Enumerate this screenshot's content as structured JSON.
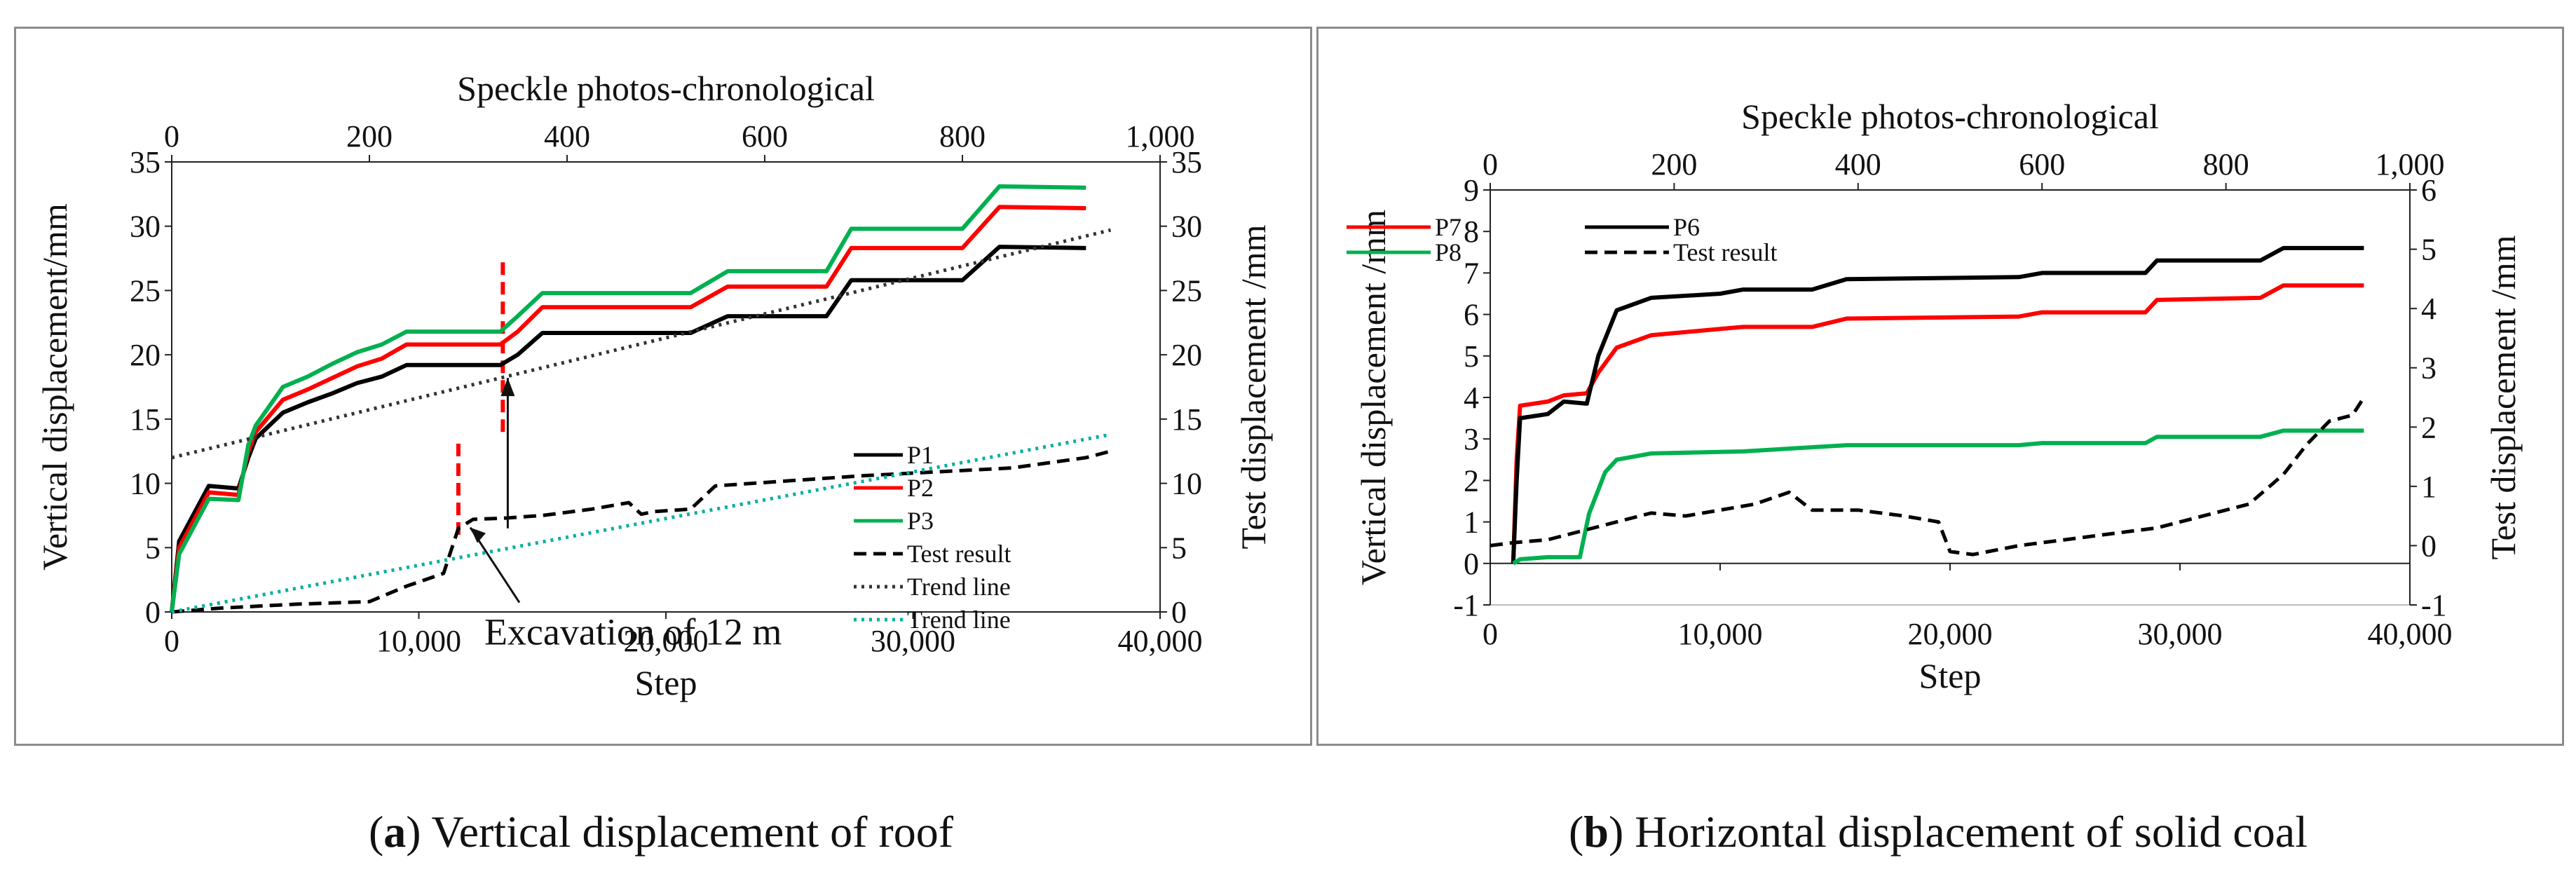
{
  "chart_data": [
    {
      "type": "line",
      "panel": "a",
      "xlabel": "Step",
      "x2label": "Speckle photos-chronological",
      "ylabel": "Vertical displacement/mm",
      "y2label": "Test displacement /mm",
      "xlim": [
        0,
        40000
      ],
      "x2lim": [
        0,
        1000
      ],
      "ylim": [
        0,
        35
      ],
      "y2lim": [
        0,
        35
      ],
      "xticks": [
        "0",
        "10,000",
        "20,000",
        "30,000",
        "40,000"
      ],
      "x2ticks": [
        "0",
        "200",
        "400",
        "600",
        "800",
        "1,000"
      ],
      "yticks": [
        "0",
        "5",
        "10",
        "15",
        "20",
        "25",
        "30",
        "35"
      ],
      "y2ticks": [
        "0",
        "5",
        "10",
        "15",
        "20",
        "25",
        "30",
        "35"
      ],
      "grid": false,
      "legend": "right",
      "series": [
        {
          "name": "P1",
          "axis": "left",
          "color": "#000000",
          "style": "solid",
          "x": [
            0,
            300,
            1500,
            2700,
            3100,
            3400,
            4500,
            5500,
            6500,
            7500,
            8500,
            9500,
            10500,
            13300,
            14000,
            15000,
            21000,
            22500,
            26500,
            27500,
            32000,
            33500,
            37000
          ],
          "y": [
            0,
            5.5,
            9.8,
            9.6,
            12,
            13.5,
            15.5,
            16.3,
            17,
            17.8,
            18.3,
            19.2,
            19.2,
            19.2,
            20,
            21.7,
            21.7,
            23,
            23,
            25.8,
            25.8,
            28.4,
            28.3
          ]
        },
        {
          "name": "P2",
          "axis": "left",
          "color": "#ff0000",
          "style": "solid",
          "x": [
            0,
            300,
            1500,
            2700,
            3100,
            3400,
            4500,
            5500,
            6500,
            7500,
            8500,
            9500,
            10500,
            13300,
            14000,
            15000,
            21000,
            22500,
            26500,
            27500,
            32000,
            33500,
            37000
          ],
          "y": [
            0,
            5,
            9.3,
            9.1,
            12.5,
            14,
            16.5,
            17.3,
            18.2,
            19.1,
            19.7,
            20.8,
            20.8,
            20.8,
            21.8,
            23.7,
            23.7,
            25.3,
            25.3,
            28.3,
            28.3,
            31.5,
            31.4
          ]
        },
        {
          "name": "P3",
          "axis": "left",
          "color": "#00b050",
          "style": "solid",
          "x": [
            0,
            300,
            1500,
            2700,
            3100,
            3400,
            4500,
            5500,
            6500,
            7500,
            8500,
            9500,
            10500,
            13300,
            14000,
            15000,
            21000,
            22500,
            26500,
            27500,
            32000,
            33500,
            37000
          ],
          "y": [
            0,
            4.5,
            8.8,
            8.7,
            13,
            14.5,
            17.5,
            18.3,
            19.3,
            20.2,
            20.8,
            21.8,
            21.8,
            21.8,
            23,
            24.8,
            24.8,
            26.5,
            26.5,
            29.8,
            29.8,
            33.1,
            33
          ]
        },
        {
          "name": "Test result",
          "axis": "right",
          "color": "#000000",
          "style": "dashed",
          "x": [
            0,
            2000,
            5000,
            8000,
            9500,
            11000,
            11600,
            12200,
            13500,
            15000,
            17000,
            18500,
            19000,
            19500,
            21000,
            22000,
            25000,
            28000,
            31000,
            34000,
            37000,
            38000
          ],
          "y": [
            0,
            0.3,
            0.6,
            0.8,
            2,
            3,
            6.5,
            7.2,
            7.3,
            7.5,
            8,
            8.5,
            7.6,
            7.8,
            8,
            9.8,
            10.2,
            10.6,
            10.9,
            11.2,
            12,
            12.5
          ]
        },
        {
          "name": "Trend line",
          "axis": "left",
          "color": "#333333",
          "style": "dotted",
          "x": [
            0,
            38000
          ],
          "y": [
            12,
            29.7
          ]
        },
        {
          "name": "Trend line",
          "axis": "left",
          "color": "#00b0a0",
          "style": "dotted",
          "x": [
            0,
            38000
          ],
          "y": [
            0,
            13.8
          ]
        }
      ],
      "annotations": [
        {
          "text": "Excavation of 12 m",
          "x": 11800,
          "y": 7
        }
      ],
      "markers": [
        {
          "type": "vline",
          "color": "#ff0000",
          "style": "dashed",
          "x": 11600,
          "y": [
            6,
            13.5
          ]
        },
        {
          "type": "vline",
          "color": "#ff0000",
          "style": "dashed",
          "x": 13400,
          "y": [
            14,
            27.7
          ]
        }
      ]
    },
    {
      "type": "line",
      "panel": "b",
      "xlabel": "Step",
      "x2label": "Speckle photos-chronological",
      "ylabel": "Vertical displacement  /mm",
      "y2label": "Test displacement  /mm",
      "xlim": [
        0,
        40000
      ],
      "x2lim": [
        0,
        1000
      ],
      "ylim": [
        -1,
        9
      ],
      "y2lim": [
        -1,
        6
      ],
      "xticks": [
        "0",
        "10,000",
        "20,000",
        "30,000",
        "40,000"
      ],
      "x2ticks": [
        "0",
        "200",
        "400",
        "600",
        "800",
        "1,000"
      ],
      "yticks": [
        "-1",
        "0",
        "1",
        "2",
        "3",
        "4",
        "5",
        "6",
        "7",
        "8",
        "9"
      ],
      "y2ticks": [
        "-1",
        "0",
        "1",
        "2",
        "3",
        "4",
        "5",
        "6"
      ],
      "grid": false,
      "legend": "top-left",
      "series": [
        {
          "name": "P7",
          "axis": "left",
          "color": "#ff0000",
          "style": "solid",
          "x": [
            1000,
            1150,
            1300,
            2500,
            3200,
            4200,
            4700,
            5500,
            7000,
            10000,
            11000,
            14000,
            15500,
            23000,
            24000,
            28500,
            29000,
            33500,
            34500,
            38000
          ],
          "y": [
            0,
            2.5,
            3.8,
            3.9,
            4.05,
            4.1,
            4.6,
            5.2,
            5.5,
            5.65,
            5.7,
            5.7,
            5.9,
            5.95,
            6.05,
            6.05,
            6.35,
            6.4,
            6.7,
            6.7
          ]
        },
        {
          "name": "P6",
          "axis": "left",
          "color": "#000000",
          "style": "solid",
          "x": [
            1000,
            1150,
            1300,
            2500,
            3200,
            4200,
            4700,
            5500,
            7000,
            10000,
            11000,
            14000,
            15500,
            23000,
            24000,
            28500,
            29000,
            33500,
            34500,
            38000
          ],
          "y": [
            0,
            2,
            3.5,
            3.6,
            3.9,
            3.85,
            5,
            6.1,
            6.4,
            6.5,
            6.6,
            6.6,
            6.85,
            6.9,
            7,
            7,
            7.3,
            7.3,
            7.6,
            7.6
          ]
        },
        {
          "name": "P8",
          "axis": "left",
          "color": "#00b050",
          "style": "solid",
          "x": [
            1000,
            1300,
            2500,
            3900,
            4300,
            5000,
            5500,
            7000,
            11000,
            15500,
            23000,
            24000,
            28500,
            29000,
            33500,
            34500,
            38000
          ],
          "y": [
            0,
            0.1,
            0.15,
            0.15,
            1.2,
            2.2,
            2.5,
            2.65,
            2.7,
            2.85,
            2.85,
            2.9,
            2.9,
            3.05,
            3.05,
            3.2,
            3.2
          ]
        },
        {
          "name": "Test result",
          "axis": "right",
          "color": "#000000",
          "style": "dashed",
          "x": [
            0,
            1000,
            2500,
            4000,
            5500,
            7000,
            8500,
            10000,
            11500,
            13000,
            14000,
            16000,
            18000,
            19500,
            20000,
            21000,
            23000,
            25000,
            27000,
            29000,
            31000,
            33000,
            34500,
            35500,
            36500,
            37500,
            38000
          ],
          "y": [
            0,
            0.05,
            0.1,
            0.25,
            0.4,
            0.55,
            0.5,
            0.6,
            0.7,
            0.9,
            0.6,
            0.6,
            0.5,
            0.4,
            -0.1,
            -0.15,
            0,
            0.1,
            0.2,
            0.3,
            0.5,
            0.7,
            1.2,
            1.7,
            2.1,
            2.2,
            2.5
          ]
        }
      ]
    }
  ],
  "captions": {
    "a_label": "a",
    "a_text": " Vertical displacement of roof",
    "b_label": "b",
    "b_text": " Horizontal displacement of solid coal"
  }
}
